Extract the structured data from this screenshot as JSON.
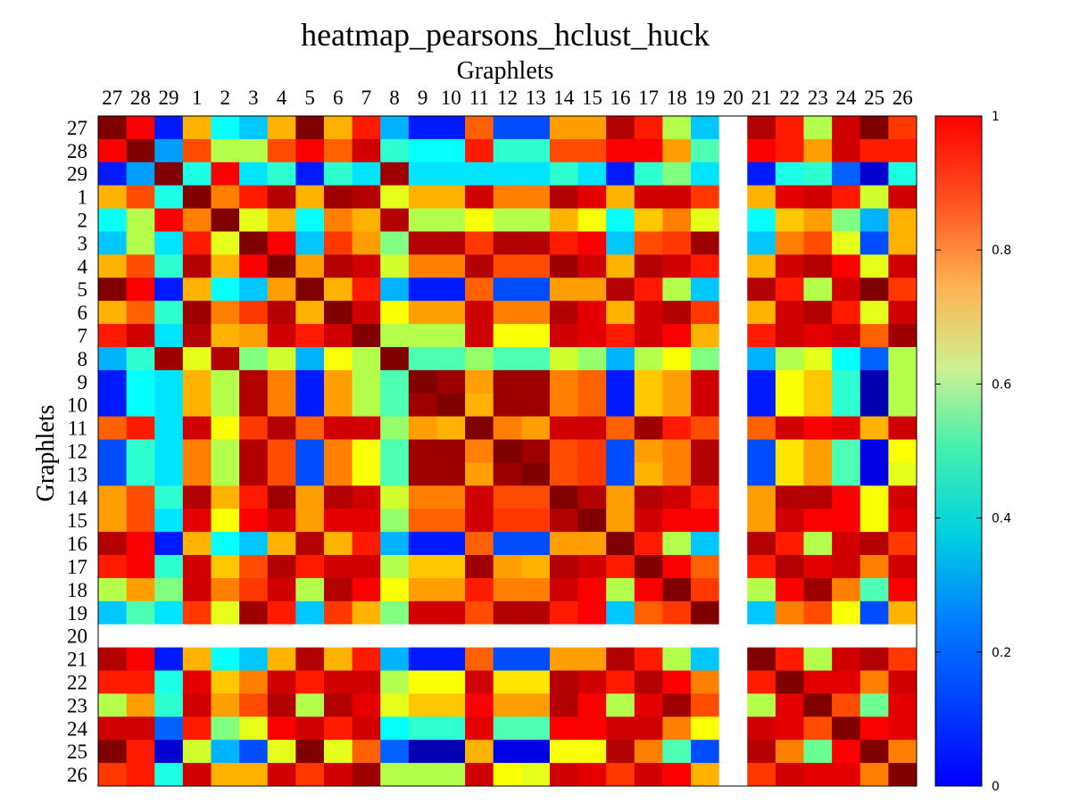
{
  "chart_data": {
    "type": "heatmap",
    "title": "heatmap_pearsons_hclust_huck",
    "xlabel": "Graphlets",
    "ylabel": "Graphlets",
    "x_categories": [
      "27",
      "28",
      "29",
      "1",
      "2",
      "3",
      "4",
      "5",
      "6",
      "7",
      "8",
      "9",
      "10",
      "11",
      "12",
      "13",
      "14",
      "15",
      "16",
      "17",
      "18",
      "19",
      "20",
      "21",
      "22",
      "23",
      "24",
      "25",
      "26"
    ],
    "y_categories": [
      "27",
      "28",
      "29",
      "1",
      "2",
      "3",
      "4",
      "5",
      "6",
      "7",
      "8",
      "9",
      "10",
      "11",
      "12",
      "13",
      "14",
      "15",
      "16",
      "17",
      "18",
      "19",
      "20",
      "21",
      "22",
      "23",
      "24",
      "25",
      "26"
    ],
    "missing_label": "20",
    "colorbar": {
      "min": 0,
      "max": 1,
      "ticks": [
        "0",
        "0.2",
        "0.4",
        "0.6",
        "0.8",
        "1"
      ],
      "colormap": "jet"
    },
    "values": [
      [
        1.0,
        0.88,
        0.15,
        0.7,
        0.38,
        0.32,
        0.7,
        1.0,
        0.7,
        0.85,
        0.3,
        0.15,
        0.15,
        0.78,
        0.2,
        0.2,
        0.72,
        0.72,
        0.95,
        0.85,
        0.55,
        0.32,
        null,
        0.95,
        0.85,
        0.55,
        0.92,
        1.0,
        0.82
      ],
      [
        0.88,
        1.0,
        0.28,
        0.8,
        0.55,
        0.55,
        0.8,
        0.88,
        0.78,
        0.92,
        0.42,
        0.38,
        0.38,
        0.85,
        0.42,
        0.42,
        0.8,
        0.8,
        0.88,
        0.88,
        0.72,
        0.45,
        null,
        0.88,
        0.85,
        0.72,
        0.92,
        0.85,
        0.85
      ],
      [
        0.15,
        0.28,
        1.0,
        0.4,
        0.88,
        0.35,
        0.42,
        0.15,
        0.42,
        0.35,
        0.97,
        0.35,
        0.35,
        0.35,
        0.35,
        0.35,
        0.42,
        0.35,
        0.15,
        0.42,
        0.5,
        0.35,
        null,
        0.15,
        0.4,
        0.42,
        0.22,
        0.08,
        0.4
      ],
      [
        0.7,
        0.8,
        0.4,
        1.0,
        0.75,
        0.85,
        0.95,
        0.7,
        0.97,
        0.95,
        0.6,
        0.7,
        0.7,
        0.92,
        0.75,
        0.75,
        0.95,
        0.9,
        0.7,
        0.92,
        0.92,
        0.82,
        null,
        0.7,
        0.9,
        0.92,
        0.85,
        0.58,
        0.92
      ],
      [
        0.38,
        0.55,
        0.88,
        0.75,
        1.0,
        0.6,
        0.7,
        0.38,
        0.75,
        0.7,
        0.95,
        0.55,
        0.55,
        0.62,
        0.55,
        0.55,
        0.7,
        0.62,
        0.38,
        0.68,
        0.75,
        0.6,
        null,
        0.38,
        0.68,
        0.72,
        0.5,
        0.3,
        0.7
      ],
      [
        0.32,
        0.55,
        0.35,
        0.85,
        0.6,
        1.0,
        0.88,
        0.32,
        0.82,
        0.72,
        0.5,
        0.95,
        0.95,
        0.82,
        0.95,
        0.95,
        0.85,
        0.88,
        0.32,
        0.8,
        0.82,
        0.97,
        null,
        0.32,
        0.75,
        0.8,
        0.6,
        0.2,
        0.7
      ],
      [
        0.7,
        0.8,
        0.42,
        0.95,
        0.7,
        0.88,
        1.0,
        0.72,
        0.95,
        0.92,
        0.58,
        0.75,
        0.75,
        0.95,
        0.8,
        0.8,
        0.97,
        0.92,
        0.7,
        0.95,
        0.92,
        0.85,
        null,
        0.7,
        0.92,
        0.95,
        0.88,
        0.6,
        0.92
      ],
      [
        1.0,
        0.88,
        0.15,
        0.7,
        0.38,
        0.32,
        0.72,
        1.0,
        0.7,
        0.85,
        0.3,
        0.15,
        0.15,
        0.78,
        0.2,
        0.2,
        0.72,
        0.72,
        0.95,
        0.85,
        0.55,
        0.32,
        null,
        0.95,
        0.85,
        0.55,
        0.92,
        1.0,
        0.82
      ],
      [
        0.7,
        0.78,
        0.42,
        0.97,
        0.75,
        0.82,
        0.95,
        0.7,
        1.0,
        0.92,
        0.62,
        0.72,
        0.72,
        0.92,
        0.75,
        0.75,
        0.95,
        0.9,
        0.7,
        0.92,
        0.95,
        0.82,
        null,
        0.7,
        0.92,
        0.95,
        0.85,
        0.6,
        0.92
      ],
      [
        0.85,
        0.92,
        0.35,
        0.95,
        0.7,
        0.72,
        0.92,
        0.85,
        0.92,
        1.0,
        0.55,
        0.55,
        0.55,
        0.92,
        0.62,
        0.62,
        0.92,
        0.9,
        0.85,
        0.92,
        0.88,
        0.7,
        null,
        0.85,
        0.92,
        0.9,
        0.92,
        0.78,
        0.97
      ],
      [
        0.3,
        0.42,
        0.97,
        0.6,
        0.95,
        0.5,
        0.58,
        0.3,
        0.62,
        0.55,
        1.0,
        0.45,
        0.45,
        0.52,
        0.45,
        0.45,
        0.58,
        0.52,
        0.3,
        0.55,
        0.62,
        0.5,
        null,
        0.3,
        0.55,
        0.6,
        0.38,
        0.22,
        0.55
      ],
      [
        0.15,
        0.38,
        0.35,
        0.7,
        0.55,
        0.95,
        0.75,
        0.15,
        0.72,
        0.55,
        0.45,
        1.0,
        0.97,
        0.72,
        0.97,
        0.97,
        0.75,
        0.78,
        0.15,
        0.68,
        0.72,
        0.92,
        null,
        0.15,
        0.62,
        0.68,
        0.42,
        0.05,
        0.55
      ],
      [
        0.15,
        0.38,
        0.35,
        0.7,
        0.55,
        0.95,
        0.75,
        0.15,
        0.72,
        0.55,
        0.45,
        0.97,
        1.0,
        0.7,
        0.97,
        0.97,
        0.75,
        0.78,
        0.15,
        0.68,
        0.72,
        0.92,
        null,
        0.15,
        0.62,
        0.68,
        0.42,
        0.05,
        0.55
      ],
      [
        0.78,
        0.85,
        0.35,
        0.92,
        0.62,
        0.82,
        0.95,
        0.78,
        0.92,
        0.92,
        0.52,
        0.72,
        0.7,
        1.0,
        0.75,
        0.72,
        0.92,
        0.92,
        0.78,
        0.97,
        0.85,
        0.8,
        null,
        0.78,
        0.92,
        0.88,
        0.9,
        0.7,
        0.92
      ],
      [
        0.2,
        0.42,
        0.35,
        0.75,
        0.55,
        0.95,
        0.8,
        0.2,
        0.75,
        0.62,
        0.45,
        0.97,
        0.97,
        0.75,
        1.0,
        0.97,
        0.8,
        0.82,
        0.2,
        0.72,
        0.75,
        0.95,
        null,
        0.2,
        0.65,
        0.72,
        0.45,
        0.1,
        0.62
      ],
      [
        0.2,
        0.42,
        0.35,
        0.75,
        0.55,
        0.95,
        0.8,
        0.2,
        0.75,
        0.62,
        0.45,
        0.97,
        0.97,
        0.72,
        0.97,
        1.0,
        0.8,
        0.82,
        0.2,
        0.7,
        0.75,
        0.95,
        null,
        0.2,
        0.65,
        0.72,
        0.45,
        0.1,
        0.6
      ],
      [
        0.72,
        0.8,
        0.42,
        0.95,
        0.7,
        0.85,
        0.97,
        0.72,
        0.95,
        0.92,
        0.58,
        0.75,
        0.75,
        0.92,
        0.8,
        0.8,
        1.0,
        0.95,
        0.72,
        0.95,
        0.92,
        0.85,
        null,
        0.72,
        0.95,
        0.95,
        0.88,
        0.62,
        0.92
      ],
      [
        0.72,
        0.8,
        0.35,
        0.9,
        0.62,
        0.88,
        0.92,
        0.72,
        0.9,
        0.9,
        0.52,
        0.78,
        0.78,
        0.92,
        0.82,
        0.82,
        0.95,
        1.0,
        0.72,
        0.92,
        0.88,
        0.88,
        null,
        0.72,
        0.92,
        0.88,
        0.88,
        0.62,
        0.9
      ],
      [
        0.95,
        0.88,
        0.15,
        0.7,
        0.38,
        0.32,
        0.7,
        0.95,
        0.7,
        0.85,
        0.3,
        0.15,
        0.15,
        0.78,
        0.2,
        0.2,
        0.72,
        0.72,
        1.0,
        0.85,
        0.55,
        0.32,
        null,
        0.95,
        0.85,
        0.55,
        0.92,
        0.95,
        0.82
      ],
      [
        0.85,
        0.88,
        0.42,
        0.92,
        0.68,
        0.8,
        0.95,
        0.85,
        0.92,
        0.92,
        0.55,
        0.68,
        0.68,
        0.97,
        0.72,
        0.7,
        0.95,
        0.92,
        0.85,
        1.0,
        0.88,
        0.78,
        null,
        0.85,
        0.95,
        0.9,
        0.92,
        0.75,
        0.92
      ],
      [
        0.55,
        0.72,
        0.5,
        0.92,
        0.75,
        0.82,
        0.92,
        0.55,
        0.95,
        0.88,
        0.62,
        0.72,
        0.72,
        0.85,
        0.75,
        0.75,
        0.92,
        0.88,
        0.55,
        0.88,
        1.0,
        0.82,
        null,
        0.55,
        0.88,
        0.97,
        0.75,
        0.45,
        0.88
      ],
      [
        0.32,
        0.45,
        0.35,
        0.82,
        0.6,
        0.97,
        0.85,
        0.32,
        0.82,
        0.7,
        0.5,
        0.92,
        0.92,
        0.8,
        0.95,
        0.95,
        0.85,
        0.88,
        0.32,
        0.78,
        0.82,
        1.0,
        null,
        0.32,
        0.75,
        0.8,
        0.62,
        0.2,
        0.7
      ],
      [
        null,
        null,
        null,
        null,
        null,
        null,
        null,
        null,
        null,
        null,
        null,
        null,
        null,
        null,
        null,
        null,
        null,
        null,
        null,
        null,
        null,
        null,
        null,
        null,
        null,
        null,
        null,
        null,
        null
      ],
      [
        0.95,
        0.88,
        0.15,
        0.7,
        0.38,
        0.32,
        0.7,
        0.95,
        0.7,
        0.85,
        0.3,
        0.15,
        0.15,
        0.78,
        0.2,
        0.2,
        0.72,
        0.72,
        0.95,
        0.85,
        0.55,
        0.32,
        null,
        1.0,
        0.85,
        0.55,
        0.92,
        0.95,
        0.82
      ],
      [
        0.85,
        0.85,
        0.4,
        0.9,
        0.68,
        0.75,
        0.92,
        0.85,
        0.92,
        0.92,
        0.55,
        0.62,
        0.62,
        0.92,
        0.65,
        0.65,
        0.95,
        0.92,
        0.85,
        0.95,
        0.88,
        0.75,
        null,
        0.85,
        1.0,
        0.9,
        0.9,
        0.75,
        0.92
      ],
      [
        0.55,
        0.72,
        0.42,
        0.92,
        0.72,
        0.8,
        0.95,
        0.55,
        0.95,
        0.9,
        0.6,
        0.68,
        0.68,
        0.88,
        0.72,
        0.72,
        0.95,
        0.88,
        0.55,
        0.9,
        0.97,
        0.8,
        null,
        0.55,
        0.9,
        1.0,
        0.8,
        0.48,
        0.9
      ],
      [
        0.92,
        0.92,
        0.22,
        0.85,
        0.5,
        0.6,
        0.88,
        0.92,
        0.85,
        0.92,
        0.38,
        0.42,
        0.42,
        0.9,
        0.45,
        0.45,
        0.88,
        0.88,
        0.92,
        0.92,
        0.75,
        0.62,
        null,
        0.92,
        0.9,
        0.8,
        1.0,
        0.88,
        0.9
      ],
      [
        1.0,
        0.85,
        0.08,
        0.58,
        0.3,
        0.2,
        0.6,
        1.0,
        0.6,
        0.78,
        0.22,
        0.05,
        0.05,
        0.7,
        0.1,
        0.1,
        0.62,
        0.62,
        0.95,
        0.75,
        0.45,
        0.2,
        null,
        0.95,
        0.75,
        0.48,
        0.88,
        1.0,
        0.75
      ],
      [
        0.82,
        0.85,
        0.4,
        0.92,
        0.7,
        0.7,
        0.92,
        0.82,
        0.92,
        0.97,
        0.55,
        0.55,
        0.55,
        0.92,
        0.62,
        0.6,
        0.92,
        0.9,
        0.82,
        0.92,
        0.88,
        0.7,
        null,
        0.82,
        0.92,
        0.9,
        0.9,
        0.75,
        1.0
      ]
    ]
  }
}
